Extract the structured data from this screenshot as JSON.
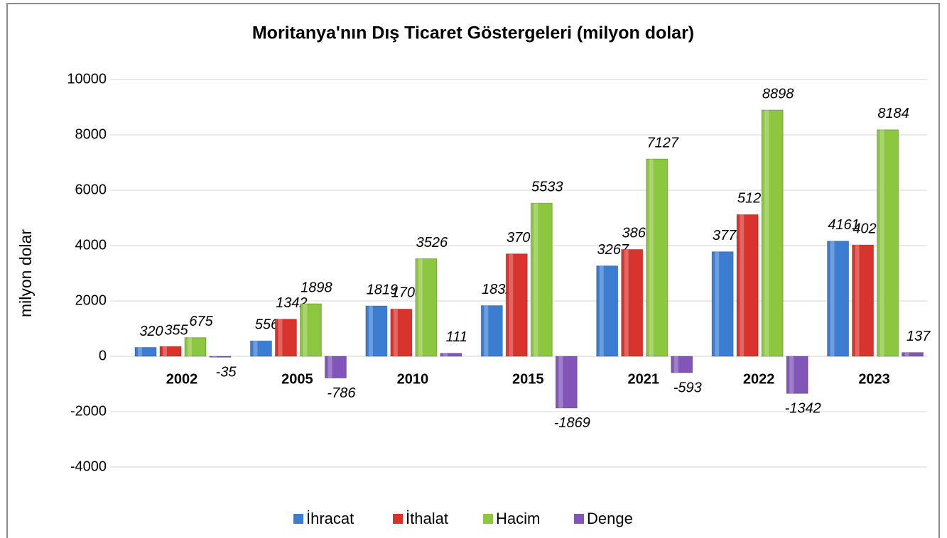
{
  "chart_data": {
    "type": "bar",
    "title": "Moritanya'nın Dış Ticaret Göstergeleri  (milyon dolar)",
    "y_label": "milyon dolar",
    "categories": [
      "2002",
      "2005",
      "2010",
      "2015",
      "2021",
      "2022",
      "2023"
    ],
    "series": [
      {
        "name": "İhracat",
        "color": "#3b7dd0",
        "values": [
          320,
          556,
          1819,
          1832,
          3267,
          3778,
          4161
        ]
      },
      {
        "name": "İthalat",
        "color": "#d8332c",
        "values": [
          355,
          1342,
          1708,
          3701,
          3860,
          5120,
          4023
        ]
      },
      {
        "name": "Hacim",
        "color": "#8dc63f",
        "values": [
          675,
          1898,
          3526,
          5533,
          7127,
          8898,
          8184
        ]
      },
      {
        "name": "Denge",
        "color": "#8256b8",
        "values": [
          -35,
          -786,
          111,
          -1869,
          -593,
          -1342,
          137
        ]
      }
    ],
    "ylim": [
      -4000,
      10000
    ],
    "yticks": [
      -4000,
      -2000,
      0,
      2000,
      4000,
      6000,
      8000,
      10000
    ],
    "grid": true,
    "legend": "bottom"
  }
}
